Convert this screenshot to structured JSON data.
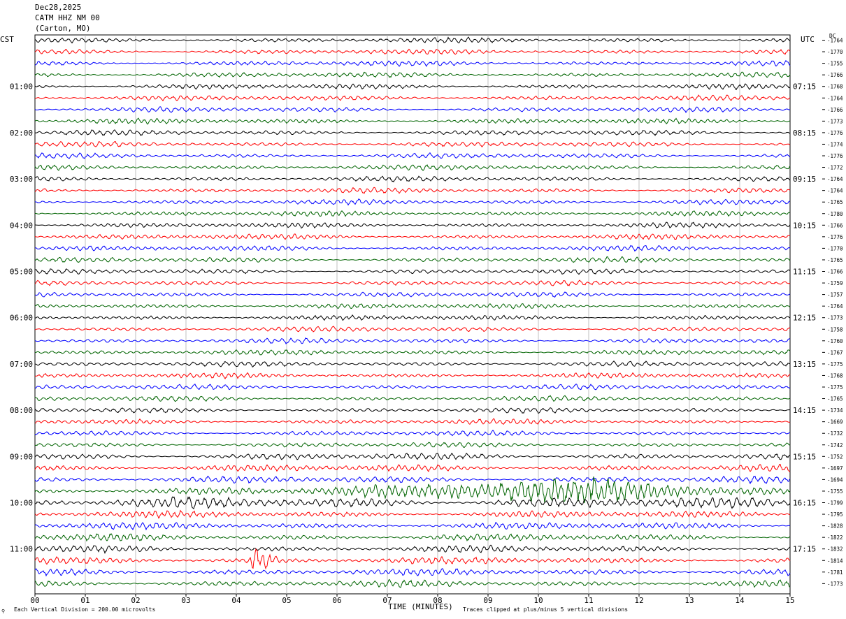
{
  "header": {
    "date": "Dec28,2025",
    "station": "CATM HHZ NM 00",
    "location": "(Carton, MO)"
  },
  "left_zone": "CST",
  "right_zone": "UTC",
  "dc_label": "DC",
  "footer": {
    "division_note": "Each Vertical Division =  200.00 microvolts",
    "clip_note": "Traces clipped at plus/minus 5 vertical divisions"
  },
  "chart_data": {
    "type": "line",
    "xlabel": "TIME (MINUTES)",
    "xlim": [
      0,
      15
    ],
    "x_ticks": [
      "00",
      "01",
      "02",
      "03",
      "04",
      "05",
      "06",
      "07",
      "08",
      "09",
      "10",
      "11",
      "12",
      "13",
      "14",
      "15"
    ],
    "trace_colors": [
      "#000000",
      "#ff0000",
      "#0000ff",
      "#006400"
    ],
    "traces_per_hour": 4,
    "trace_count": 48,
    "left_hour_labels": [
      "01:00",
      "02:00",
      "03:00",
      "04:00",
      "05:00",
      "06:00",
      "07:00",
      "08:00",
      "09:00",
      "10:00",
      "11:00"
    ],
    "right_hour_labels": [
      "07:15",
      "08:15",
      "09:15",
      "10:15",
      "11:15",
      "12:15",
      "13:15",
      "14:15",
      "15:15",
      "16:15",
      "17:15"
    ],
    "hour_label_start_trace": 4,
    "dc_offsets": [
      -1764,
      -1770,
      -1755,
      -1766,
      -1768,
      -1764,
      -1766,
      -1773,
      -1776,
      -1774,
      -1776,
      -1772,
      -1764,
      -1764,
      -1765,
      -1780,
      -1766,
      -1776,
      -1770,
      -1765,
      -1766,
      -1759,
      -1757,
      -1764,
      -1773,
      -1758,
      -1760,
      -1767,
      -1775,
      -1768,
      -1775,
      -1765,
      -1734,
      -1669,
      -1732,
      -1742,
      -1752,
      -1697,
      -1694,
      -1755,
      -1799,
      -1795,
      -1828,
      -1822,
      -1832,
      -1814,
      -1781,
      -1773
    ],
    "events": [
      {
        "trace": 39,
        "start_min": 5.0,
        "end_min": 13.5,
        "peak_min": 11.0
      },
      {
        "trace": 45,
        "start_min": 4.2,
        "end_min": 4.9,
        "peak_min": 4.4
      }
    ]
  }
}
